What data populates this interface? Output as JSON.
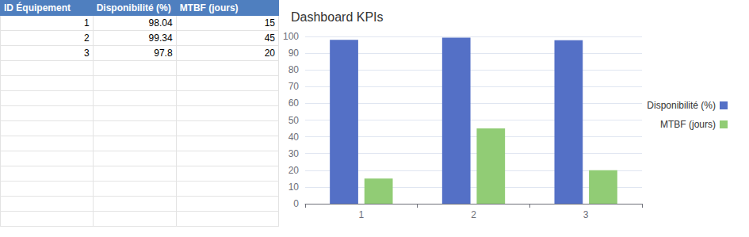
{
  "table": {
    "header": [
      "ID Équipement",
      "Disponibilité (%)",
      "MTBF (jours)"
    ],
    "rows": [
      [
        1,
        98.04,
        15
      ],
      [
        2,
        99.34,
        45
      ],
      [
        3,
        97.8,
        20
      ]
    ]
  },
  "chart_data": {
    "type": "bar",
    "title": "Dashboard KPIs",
    "categories": [
      "1",
      "2",
      "3"
    ],
    "series": [
      {
        "name": "Disponibilité (%)",
        "color": "#5470c6",
        "values": [
          98.04,
          99.34,
          97.8
        ]
      },
      {
        "name": "MTBF (jours)",
        "color": "#91cc75",
        "values": [
          15,
          45,
          20
        ]
      }
    ],
    "ylim": [
      0,
      100
    ],
    "yticks": [
      0,
      10,
      20,
      30,
      40,
      50,
      60,
      70,
      80,
      90,
      100
    ],
    "grid": true,
    "legend": "right"
  }
}
